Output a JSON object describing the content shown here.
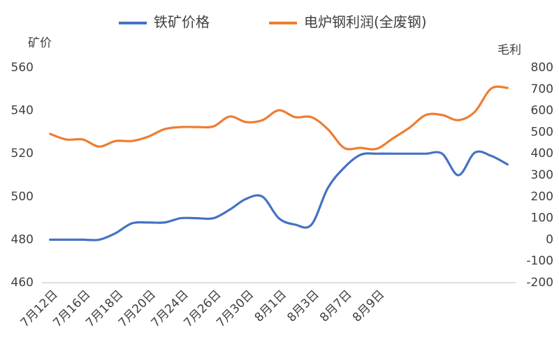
{
  "chart_data": {
    "type": "line",
    "y_label": "矿价",
    "y2_label": "毛利",
    "categories": [
      "7月12日",
      null,
      "7月16日",
      null,
      "7月18日",
      null,
      "7月20日",
      null,
      "7月24日",
      null,
      "7月26日",
      null,
      "7月30日",
      null,
      "8月1日",
      null,
      "8月3日",
      null,
      "8月7日",
      null,
      "8月9日",
      null,
      null,
      null,
      null,
      null,
      null,
      null,
      null
    ],
    "series": [
      {
        "name": "铁矿价格",
        "color": "#4472c4",
        "axis": "y",
        "values": [
          480,
          480,
          480,
          480,
          483,
          487.6,
          488,
          488,
          490,
          490,
          490,
          494,
          499,
          500,
          490,
          487,
          487,
          504,
          513.5,
          519.5,
          520,
          520,
          520,
          520,
          520,
          510,
          520.5,
          519,
          515
        ]
      },
      {
        "name": "电炉钢利润(全废钢)",
        "color": "#ed7d31",
        "axis": "y2",
        "values": [
          492,
          466,
          466,
          433,
          459,
          459,
          479,
          514,
          524,
          524,
          527,
          573,
          547,
          556,
          602,
          570,
          570,
          514,
          427,
          427,
          423,
          472,
          521,
          580,
          580,
          556,
          595,
          703,
          706
        ]
      }
    ],
    "ylim": [
      460,
      560
    ],
    "yticks": [
      460,
      480,
      500,
      520,
      540,
      560
    ],
    "y2lim": [
      -200,
      800
    ],
    "y2ticks": [
      -200,
      -100,
      0,
      100,
      200,
      300,
      400,
      500,
      600,
      700,
      800
    ],
    "legend": "top"
  }
}
